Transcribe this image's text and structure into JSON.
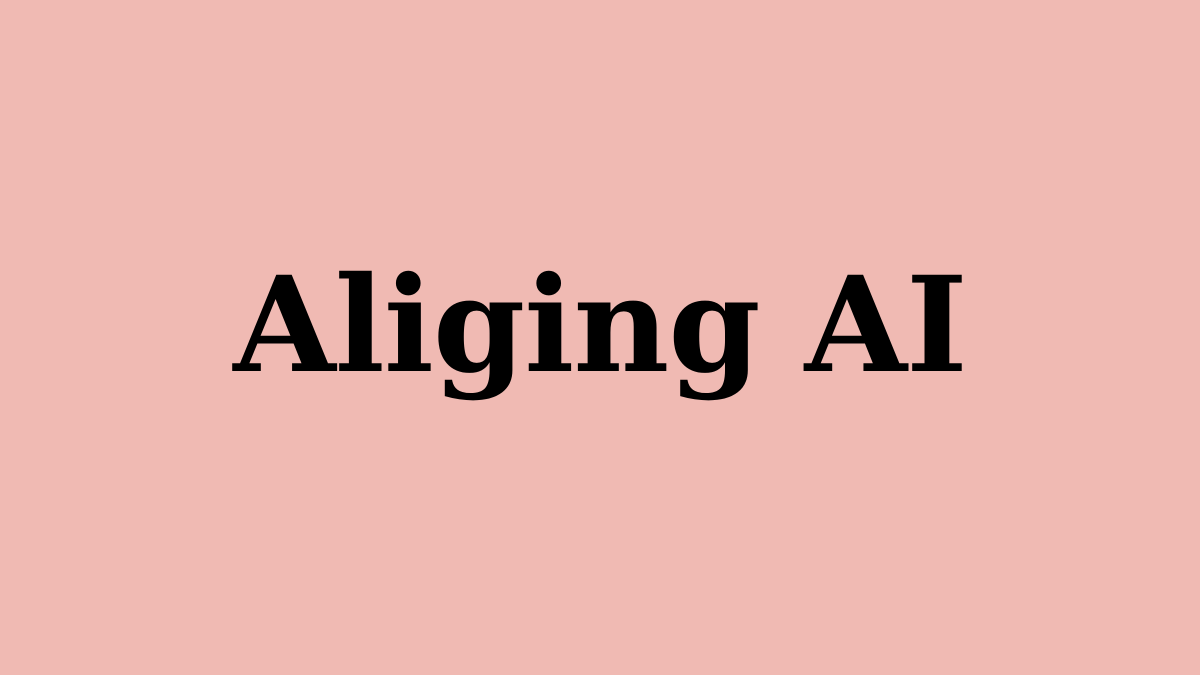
{
  "title": "Aliging AI",
  "colors": {
    "background": "#F0BAB3",
    "text": "#000000"
  }
}
